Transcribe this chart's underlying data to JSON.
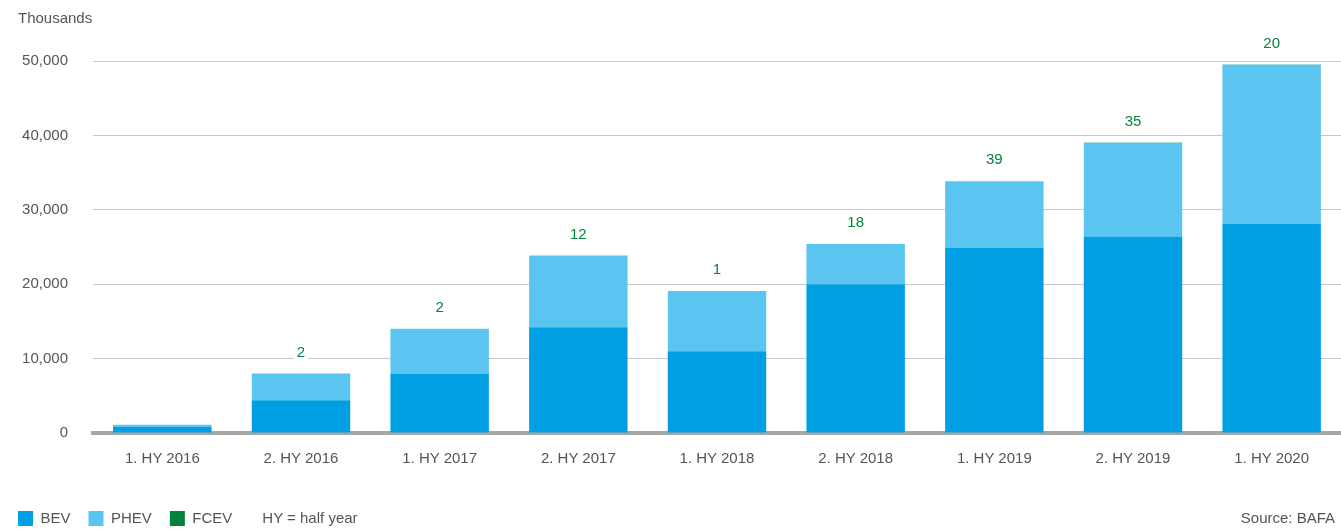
{
  "chart_data": {
    "type": "bar",
    "ylabel": "Thousands",
    "categories": [
      "1. HY 2016",
      "2. HY 2016",
      "1. HY 2017",
      "2. HY 2017",
      "1. HY 2018",
      "2. HY 2018",
      "1. HY 2019",
      "2. HY 2019",
      "1. HY 2020"
    ],
    "stacked": true,
    "series": [
      {
        "name": "BEV",
        "color": "#009fe3",
        "values": [
          800,
          4400,
          8000,
          14200,
          11000,
          20000,
          24900,
          26400,
          28100
        ]
      },
      {
        "name": "PHEV",
        "color": "#5bc5f2",
        "values": [
          300,
          3600,
          6000,
          9600,
          8100,
          5400,
          8900,
          12600,
          21400
        ]
      },
      {
        "name": "FCEV",
        "color": "#00843d",
        "values": [
          0,
          2,
          2,
          12,
          1,
          18,
          39,
          35,
          20
        ],
        "value_labels": [
          null,
          "2",
          "2",
          "12",
          "1",
          "18",
          "39",
          "35",
          "20"
        ]
      }
    ],
    "ylim": [
      0,
      50000
    ],
    "yticks": [
      0,
      {
        "value": 10000,
        "label": "10,000"
      },
      {
        "value": 20000,
        "label": "20,000"
      },
      {
        "value": 30000,
        "label": "30,000"
      },
      {
        "value": 40000,
        "label": "40,000"
      },
      {
        "value": 50000,
        "label": "50,000"
      }
    ],
    "grid": "y",
    "legend": "bottom left",
    "annotations": [
      "HY = half year",
      "Source: BAFA"
    ]
  }
}
